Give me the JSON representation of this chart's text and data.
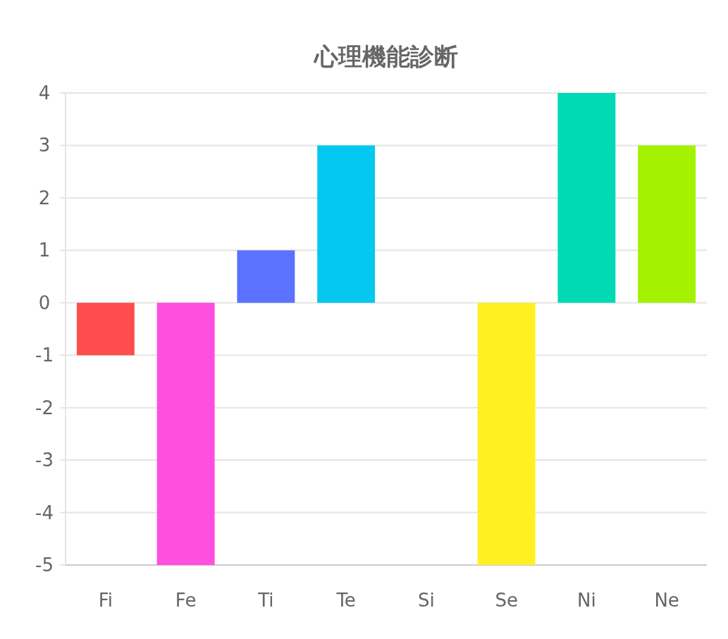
{
  "chart_data": {
    "type": "bar",
    "title": "心理機能診断",
    "categories": [
      "Fi",
      "Fe",
      "Ti",
      "Te",
      "Si",
      "Se",
      "Ni",
      "Ne"
    ],
    "values": [
      -1,
      -5,
      1,
      3,
      0,
      -5,
      4,
      3
    ],
    "colors": [
      "#ff4d4d",
      "#ff4fe0",
      "#5a72ff",
      "#05c8f0",
      null,
      "#fff023",
      "#00d9b4",
      "#a3f200"
    ],
    "ylim": [
      -5,
      4
    ],
    "yticks": [
      -5,
      -4,
      -3,
      -2,
      -1,
      0,
      1,
      2,
      3,
      4
    ],
    "grid": "y"
  }
}
